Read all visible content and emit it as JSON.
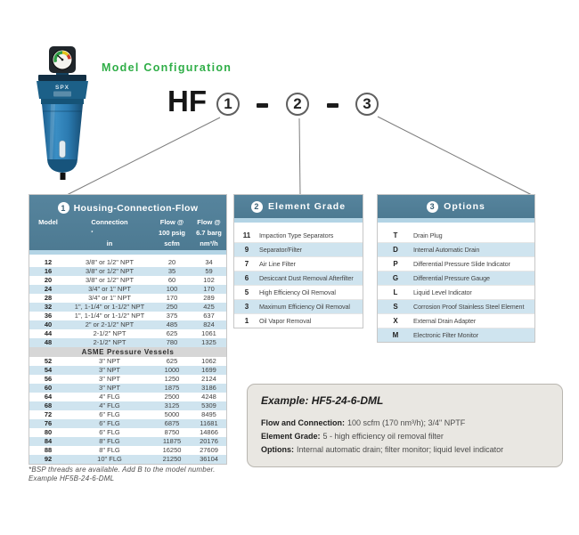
{
  "page": {
    "title": "Model Configuration"
  },
  "product": {
    "brand": "SPX"
  },
  "model_code": {
    "prefix": "HF",
    "position1": "1",
    "separator1": "-",
    "position2": "2",
    "separator2": "-",
    "position3": "3"
  },
  "housing_table": {
    "number": "1",
    "title": "Housing-Connection-Flow",
    "columns": {
      "model": "Model",
      "connection": "Connection",
      "connection_footnote_mark": "*",
      "connection_unit": "in",
      "flow1_line1": "Flow @",
      "flow1_line2": "100 psig",
      "flow1_line3": "scfm",
      "flow2_line1": "Flow @",
      "flow2_line2": "6.7 barg",
      "flow2_line3": "nm³/h"
    },
    "rows": [
      {
        "model": "12",
        "connection": "3/8\" or 1/2\" NPT",
        "scfm": "20",
        "nm3h": "34"
      },
      {
        "model": "16",
        "connection": "3/8\" or 1/2\" NPT",
        "scfm": "35",
        "nm3h": "59"
      },
      {
        "model": "20",
        "connection": "3/8\" or 1/2\" NPT",
        "scfm": "60",
        "nm3h": "102"
      },
      {
        "model": "24",
        "connection": "3/4\" or 1\" NPT",
        "scfm": "100",
        "nm3h": "170"
      },
      {
        "model": "28",
        "connection": "3/4\" or 1\" NPT",
        "scfm": "170",
        "nm3h": "289"
      },
      {
        "model": "32",
        "connection": "1\", 1-1/4\" or 1-1/2\" NPT",
        "scfm": "250",
        "nm3h": "425"
      },
      {
        "model": "36",
        "connection": "1\", 1-1/4\" or 1-1/2\" NPT",
        "scfm": "375",
        "nm3h": "637"
      },
      {
        "model": "40",
        "connection": "2\" or 2-1/2\" NPT",
        "scfm": "485",
        "nm3h": "824"
      },
      {
        "model": "44",
        "connection": "2-1/2\" NPT",
        "scfm": "625",
        "nm3h": "1061"
      },
      {
        "model": "48",
        "connection": "2-1/2\" NPT",
        "scfm": "780",
        "nm3h": "1325"
      }
    ],
    "divider": "ASME Pressure Vessels",
    "asme_rows": [
      {
        "model": "52",
        "connection": "3\" NPT",
        "scfm": "625",
        "nm3h": "1062"
      },
      {
        "model": "54",
        "connection": "3\" NPT",
        "scfm": "1000",
        "nm3h": "1699"
      },
      {
        "model": "56",
        "connection": "3\" NPT",
        "scfm": "1250",
        "nm3h": "2124"
      },
      {
        "model": "60",
        "connection": "3\" NPT",
        "scfm": "1875",
        "nm3h": "3186"
      },
      {
        "model": "64",
        "connection": "4\" FLG",
        "scfm": "2500",
        "nm3h": "4248"
      },
      {
        "model": "68",
        "connection": "4\" FLG",
        "scfm": "3125",
        "nm3h": "5309"
      },
      {
        "model": "72",
        "connection": "6\" FLG",
        "scfm": "5000",
        "nm3h": "8495"
      },
      {
        "model": "76",
        "connection": "6\" FLG",
        "scfm": "6875",
        "nm3h": "11681"
      },
      {
        "model": "80",
        "connection": "6\" FLG",
        "scfm": "8750",
        "nm3h": "14866"
      },
      {
        "model": "84",
        "connection": "8\" FLG",
        "scfm": "11875",
        "nm3h": "20176"
      },
      {
        "model": "88",
        "connection": "8\" FLG",
        "scfm": "16250",
        "nm3h": "27609"
      },
      {
        "model": "92",
        "connection": "10\" FLG",
        "scfm": "21250",
        "nm3h": "36104"
      }
    ]
  },
  "element_grade_table": {
    "number": "2",
    "title": "Element Grade",
    "rows": [
      {
        "grade": "11",
        "description": "Impaction Type Separators"
      },
      {
        "grade": "9",
        "description": "Separator/Filter"
      },
      {
        "grade": "7",
        "description": "Air Line Filter"
      },
      {
        "grade": "6",
        "description": "Desiccant Dust Removal Afterfilter"
      },
      {
        "grade": "5",
        "description": "High Efficiency Oil Removal"
      },
      {
        "grade": "3",
        "description": "Maximum Efficiency Oil Removal"
      },
      {
        "grade": "1",
        "description": "Oil Vapor Removal"
      }
    ]
  },
  "options_table": {
    "number": "3",
    "title": "Options",
    "rows": [
      {
        "code": "T",
        "description": "Drain Plug"
      },
      {
        "code": "D",
        "description": "Internal Automatic Drain"
      },
      {
        "code": "P",
        "description": "Differential Pressure Slide Indicator"
      },
      {
        "code": "G",
        "description": "Differential Pressure Gauge"
      },
      {
        "code": "L",
        "description": "Liquid Level Indicator"
      },
      {
        "code": "S",
        "description": "Corrosion Proof Stainless Steel Element"
      },
      {
        "code": "X",
        "description": "External Drain Adapter"
      },
      {
        "code": "M",
        "description": "Electronic Filter Monitor"
      }
    ]
  },
  "example_box": {
    "title": "Example: HF5-24-6-DML",
    "lines": [
      {
        "label": "Flow and Connection:",
        "text": "100 scfm (170 nm³/h); 3/4\" NPTF"
      },
      {
        "label": "Element Grade:",
        "text": "5 - high efficiency oil removal filter"
      },
      {
        "label": "Options:",
        "text": "Internal automatic drain; filter monitor; liquid level indicator"
      }
    ]
  },
  "footnote": {
    "line1": "*BSP threads are available. Add B to the model number.",
    "line2": "Example HF5B-24-6-DML"
  },
  "colors": {
    "header_blue": "#4d7a92",
    "stripe_blue": "#cfe4ef",
    "subband_blue": "#b3d4e5",
    "divider_gray": "#d6d6d6",
    "accent_green": "#2fae47",
    "example_bg": "#e9e7e2",
    "body_blue": "#2e7fb4"
  }
}
